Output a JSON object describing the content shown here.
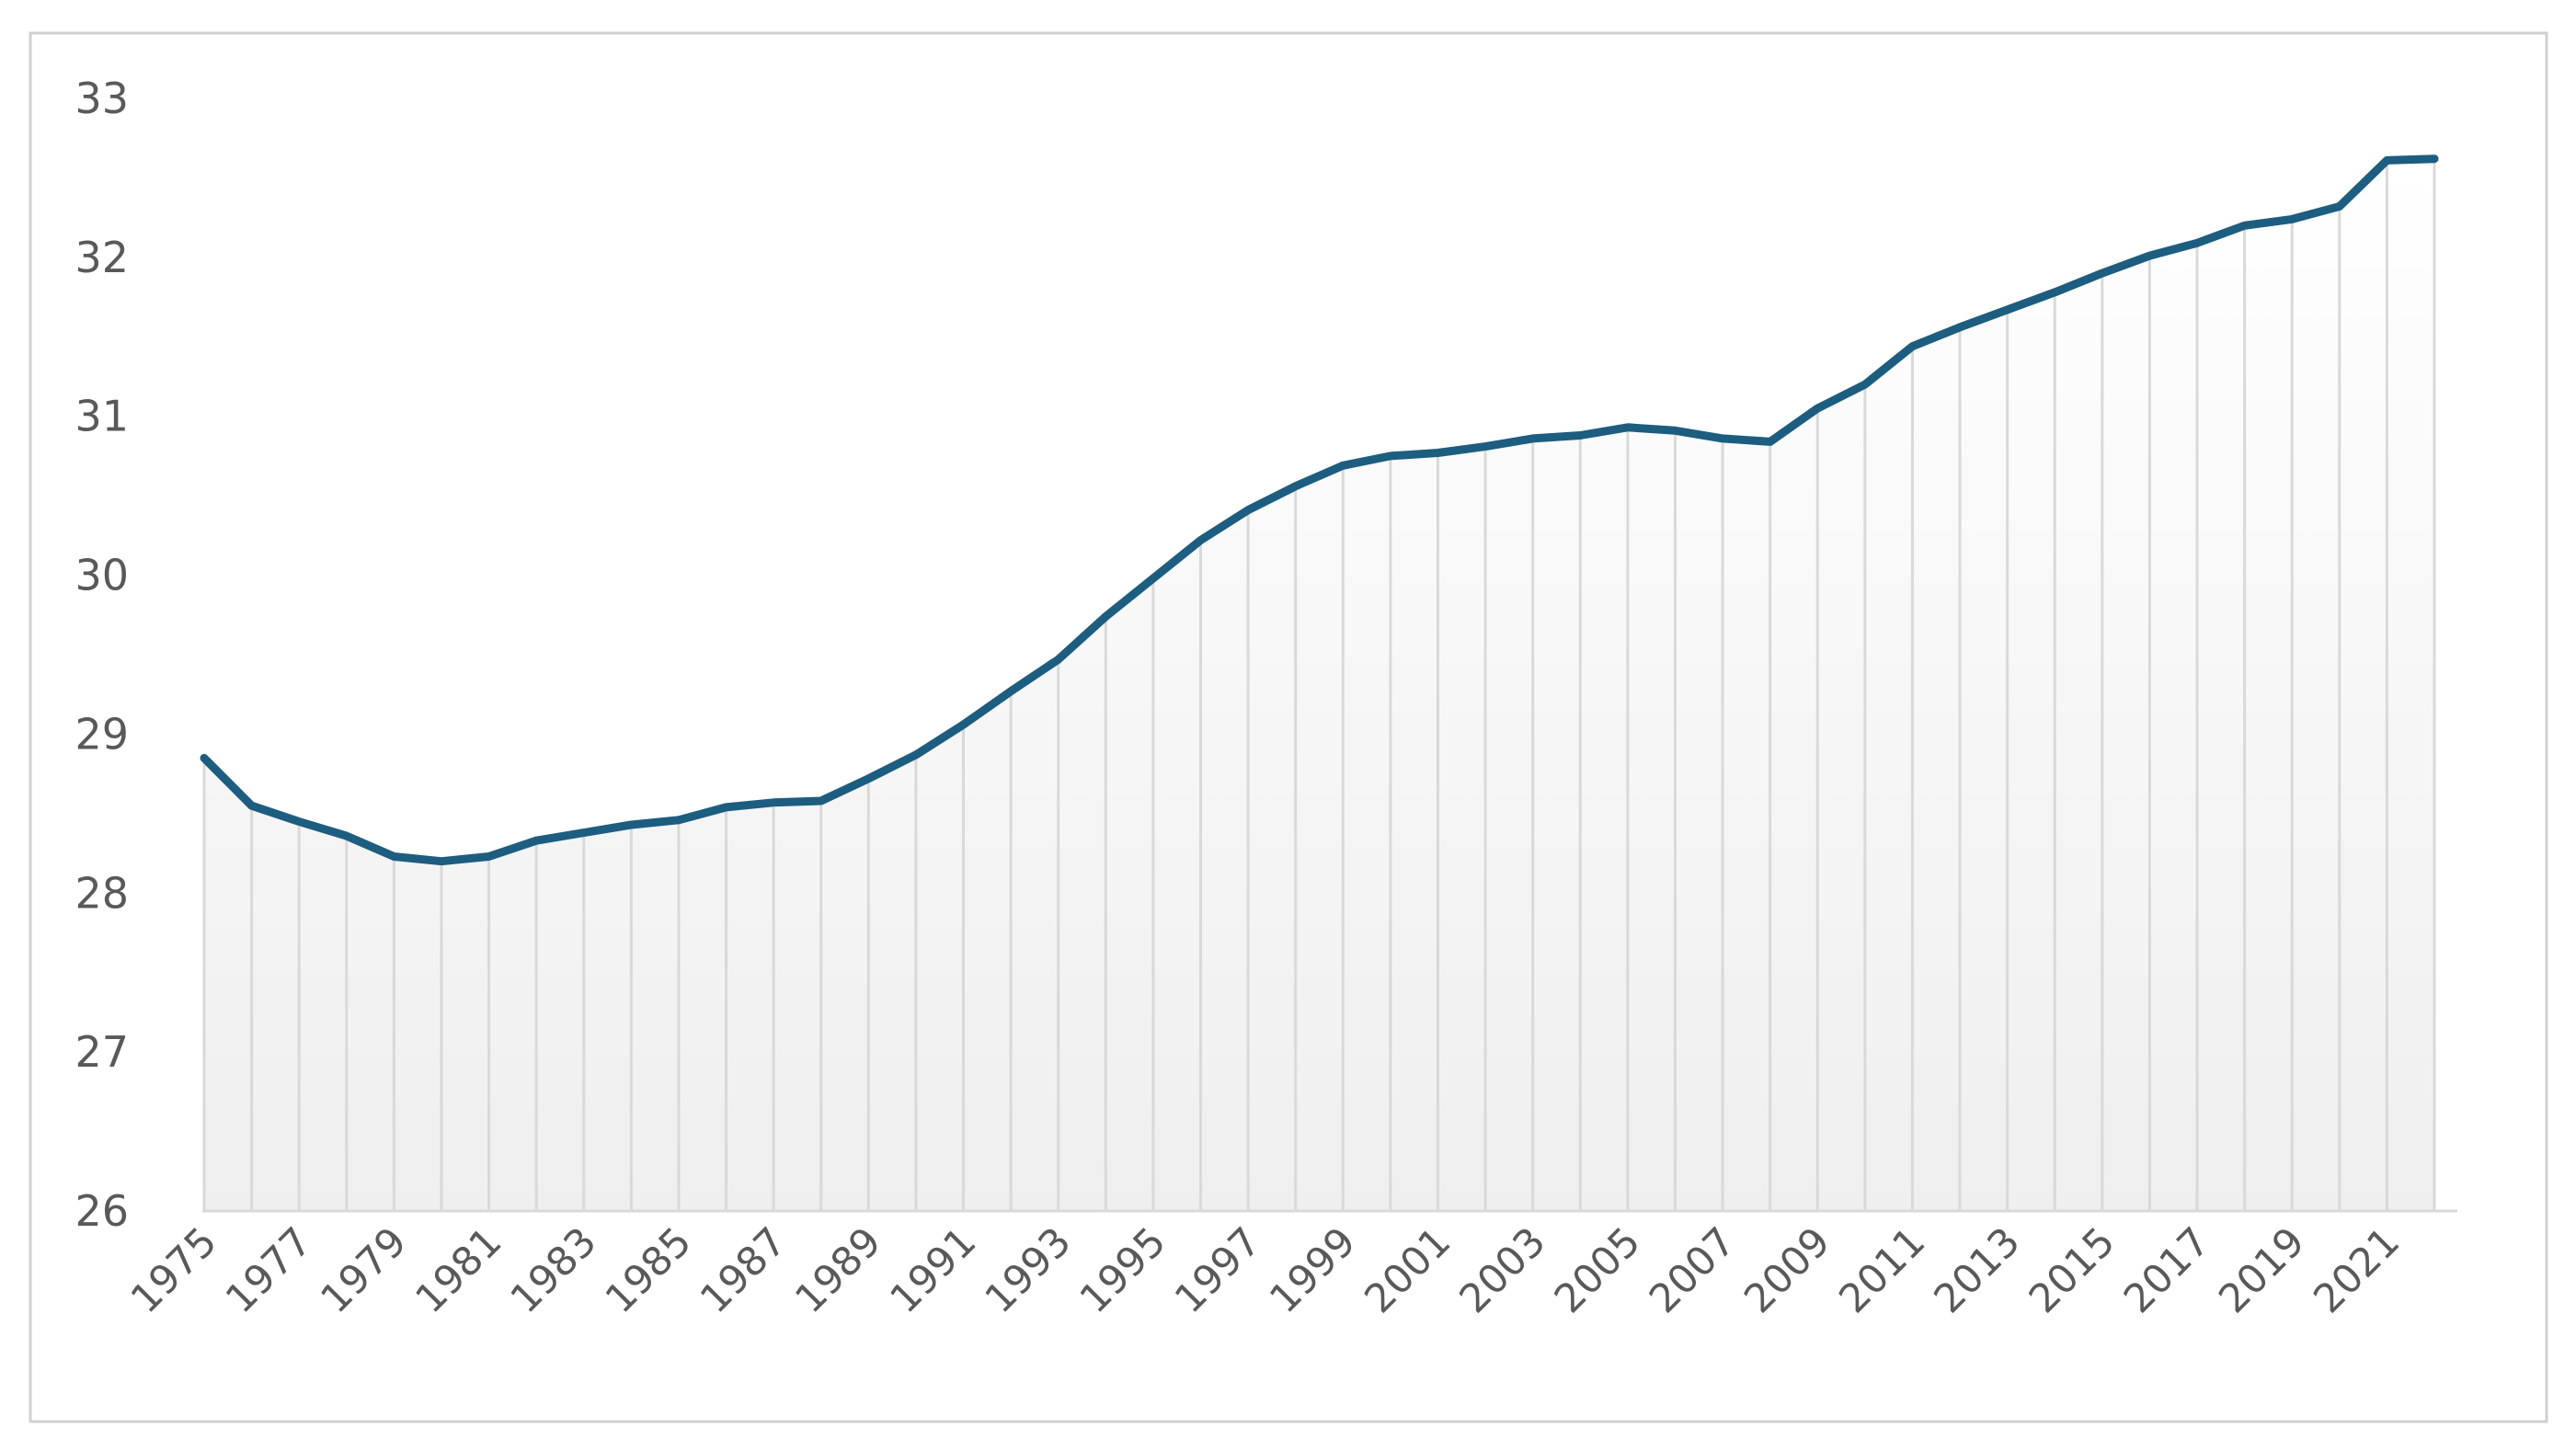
{
  "chart_data": {
    "type": "area",
    "title": "",
    "xlabel": "",
    "ylabel": "",
    "ylim": [
      26,
      33
    ],
    "y_ticks": [
      "26",
      "27",
      "28",
      "29",
      "30",
      "31",
      "32",
      "33"
    ],
    "x_tick_labels": [
      "1975",
      "1977",
      "1979",
      "1981",
      "1983",
      "1985",
      "1987",
      "1989",
      "1991",
      "1993",
      "1995",
      "1997",
      "1999",
      "2001",
      "2003",
      "2005",
      "2007",
      "2009",
      "2011",
      "2013",
      "2015",
      "2017",
      "2019",
      "2021"
    ],
    "grid": "vertical lines at each year",
    "legend": "none",
    "colors": {
      "line": "#1d5d80",
      "drop_lines": "#d9d9d9",
      "fill_top": "#ffffff",
      "fill_bottom": "#efefef",
      "axis": "#d9d9d9",
      "frame": "#d0d0d0",
      "text": "#595959"
    },
    "x": [
      1975,
      1976,
      1977,
      1978,
      1979,
      1980,
      1981,
      1982,
      1983,
      1984,
      1985,
      1986,
      1987,
      1988,
      1989,
      1990,
      1991,
      1992,
      1993,
      1994,
      1995,
      1996,
      1997,
      1998,
      1999,
      2000,
      2001,
      2002,
      2003,
      2004,
      2005,
      2006,
      2007,
      2008,
      2009,
      2010,
      2011,
      2012,
      2013,
      2014,
      2015,
      2016,
      2017,
      2018,
      2019,
      2020,
      2021,
      2022
    ],
    "series": [
      {
        "values": [
          28.85,
          28.55,
          28.45,
          28.36,
          28.23,
          28.2,
          28.23,
          28.33,
          28.38,
          28.43,
          28.46,
          28.54,
          28.57,
          28.58,
          28.72,
          28.87,
          29.06,
          29.27,
          29.47,
          29.74,
          29.98,
          30.22,
          30.41,
          30.56,
          30.69,
          30.75,
          30.77,
          30.81,
          30.86,
          30.88,
          30.93,
          30.91,
          30.86,
          30.84,
          31.05,
          31.2,
          31.44,
          31.56,
          31.67,
          31.78,
          31.9,
          32.01,
          32.09,
          32.2,
          32.24,
          32.32,
          32.61,
          32.62
        ]
      }
    ]
  }
}
